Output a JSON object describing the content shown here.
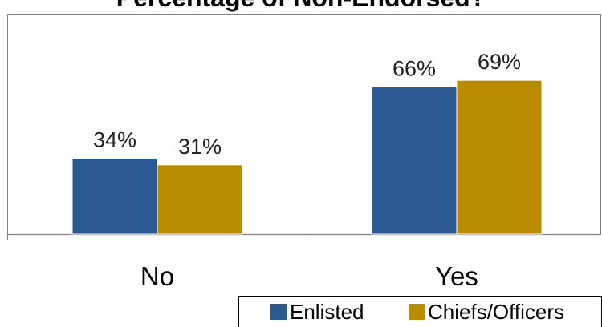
{
  "chart_data": {
    "type": "bar",
    "title": "Percentage of Non-Endorsed?",
    "categories": [
      "No",
      "Yes"
    ],
    "series": [
      {
        "name": "Enlisted",
        "values": [
          34,
          66
        ],
        "labels": [
          "34%",
          "66%"
        ],
        "color": "#2B5A93"
      },
      {
        "name": "Chiefs/Officers",
        "values": [
          31,
          69
        ],
        "labels": [
          "31%",
          "69%"
        ],
        "color": "#B98C00"
      }
    ],
    "ylim": [
      0,
      100
    ],
    "xlabel": "",
    "ylabel": "",
    "grid": false,
    "legend_position": "bottom-right"
  }
}
